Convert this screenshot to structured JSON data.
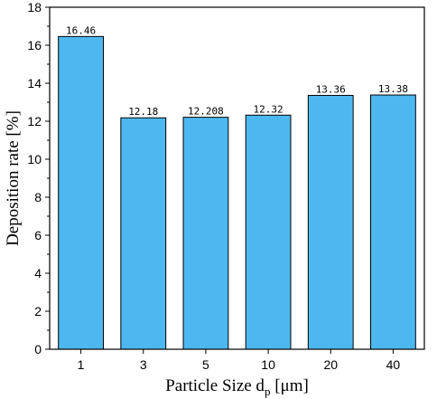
{
  "chart_data": {
    "type": "bar",
    "categories": [
      "1",
      "3",
      "5",
      "10",
      "20",
      "40"
    ],
    "values": [
      16.46,
      12.18,
      12.208,
      12.32,
      13.36,
      13.38
    ],
    "data_labels": [
      "16.46",
      "12.18",
      "12.208",
      "12.32",
      "13.36",
      "13.38"
    ],
    "xlabel": {
      "main": "Particle Size d",
      "sub": "p",
      "unit": " [μm]"
    },
    "ylabel": "Deposition rate [%]",
    "ylim": [
      0,
      18
    ],
    "yticks": [
      0,
      2,
      4,
      6,
      8,
      10,
      12,
      14,
      16,
      18
    ],
    "grid": false,
    "colors": {
      "bar": "#4db8f0",
      "edge": "#000000"
    }
  }
}
